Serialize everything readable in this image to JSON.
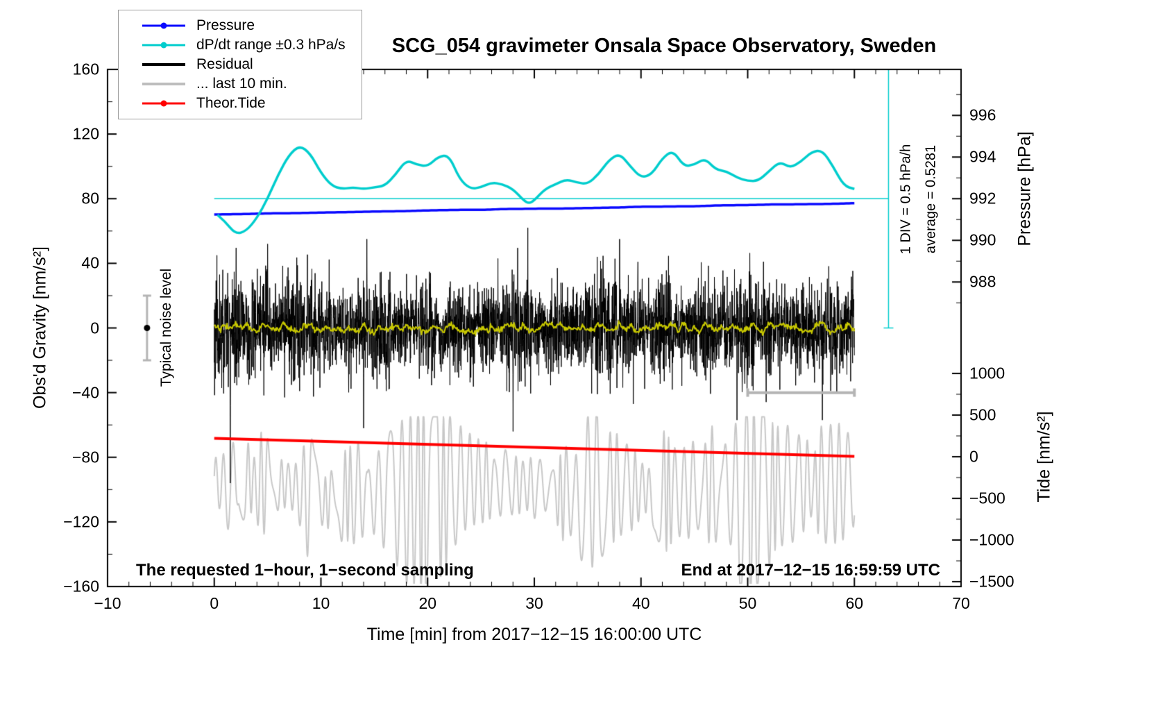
{
  "title": "SCG_054 gravimeter Onsala Space Observatory, Sweden",
  "legend": {
    "items": [
      {
        "label": "Pressure",
        "color": "#0a0aff",
        "marker": "line-dot",
        "line_width": 3
      },
      {
        "label": "dP/dt range ±0.3 hPa/s",
        "color": "#00cdcd",
        "marker": "line-dot",
        "line_width": 3
      },
      {
        "label": "Residual",
        "color": "#000000",
        "marker": "line",
        "line_width": 4
      },
      {
        "label": "... last 10 min.",
        "color": "#bdbdbd",
        "marker": "line",
        "line_width": 4
      },
      {
        "label": "Theor.Tide",
        "color": "#ff0000",
        "marker": "line-dot",
        "line_width": 3
      }
    ]
  },
  "axes": {
    "x": {
      "label": "Time [min] from 2017−12−15 16:00:00 UTC",
      "min": -10,
      "max": 70,
      "major_ticks": [
        -10,
        0,
        10,
        20,
        30,
        40,
        50,
        60,
        70
      ],
      "minor_step": 2
    },
    "gravity": {
      "label": "Obs'd Gravity [nm/s²]",
      "min": -160,
      "max": 160,
      "major_ticks": [
        -160,
        -120,
        -80,
        -40,
        0,
        40,
        80,
        120,
        160
      ],
      "minor_step": 20
    },
    "pressure": {
      "label": "Pressure [hPa]",
      "major_ticks": [
        988,
        990,
        992,
        994,
        996
      ],
      "minor_ticks": [
        987,
        989,
        991,
        993,
        995,
        997
      ]
    },
    "tide": {
      "label": "Tide [nm/s²]",
      "major_ticks": [
        -1500,
        -1000,
        -500,
        0,
        500,
        1000
      ],
      "minor_ticks": [
        -1250,
        -750,
        -250,
        250,
        750
      ]
    }
  },
  "annotations": {
    "noise_level_label": "Typical noise level",
    "div_label": "1 DIV = 0.5 hPa/h",
    "average_label": "average = 0.5281",
    "sampling_note": "The requested 1−hour, 1−second sampling",
    "end_note": "End at 2017−12−15 16:59:59 UTC"
  },
  "chart_data": {
    "type": "line",
    "title": "SCG_054 gravimeter Onsala Space Observatory, Sweden",
    "x_axis": {
      "label": "Time [min] from 2017−12−15 16:00:00 UTC",
      "range": [
        -10,
        70
      ],
      "units": "min"
    },
    "y_left": {
      "label": "Obs'd Gravity [nm/s²]",
      "range": [
        -160,
        160
      ]
    },
    "y_right_pressure": {
      "label": "Pressure [hPa]",
      "ticks": [
        988,
        990,
        992,
        994,
        996
      ],
      "hpa_at_gravity_80": 992
    },
    "y_right_tide": {
      "label": "Tide [nm/s²]",
      "ticks": [
        -1500,
        -1000,
        -500,
        0,
        500,
        1000
      ]
    },
    "series": [
      {
        "name": "Pressure",
        "axis": "pressure",
        "color": "#0a0aff",
        "type": "trend",
        "x": [
          0,
          60
        ],
        "y_hpa": [
          991.25,
          991.78
        ],
        "trend_hpa_per_h": 0.5281,
        "width": 3.5
      },
      {
        "name": "dP/dt range ±0.3 hPa/s",
        "axis": "gravity",
        "color": "#00cdcd",
        "type": "smooth",
        "width": 3.5,
        "points": [
          [
            0.3,
            70
          ],
          [
            1,
            66
          ],
          [
            2,
            58
          ],
          [
            3,
            60
          ],
          [
            4,
            68
          ],
          [
            5,
            80
          ],
          [
            6,
            95
          ],
          [
            7,
            107
          ],
          [
            8,
            113
          ],
          [
            9,
            108
          ],
          [
            10,
            96
          ],
          [
            11,
            88
          ],
          [
            12,
            86
          ],
          [
            13,
            87
          ],
          [
            14,
            86
          ],
          [
            15,
            87
          ],
          [
            16,
            88
          ],
          [
            17,
            95
          ],
          [
            18,
            104
          ],
          [
            19,
            101
          ],
          [
            20,
            100
          ],
          [
            21,
            106
          ],
          [
            22,
            107
          ],
          [
            23,
            92
          ],
          [
            24,
            86
          ],
          [
            25,
            87
          ],
          [
            26,
            90
          ],
          [
            27,
            89
          ],
          [
            28,
            86
          ],
          [
            29,
            79
          ],
          [
            29.5,
            77
          ],
          [
            30,
            79
          ],
          [
            31,
            86
          ],
          [
            32,
            89
          ],
          [
            33,
            92
          ],
          [
            34,
            90
          ],
          [
            35,
            89
          ],
          [
            36,
            95
          ],
          [
            37,
            104
          ],
          [
            38,
            108
          ],
          [
            39,
            100
          ],
          [
            40,
            93
          ],
          [
            41,
            95
          ],
          [
            42,
            105
          ],
          [
            43,
            110
          ],
          [
            44,
            100
          ],
          [
            45,
            101
          ],
          [
            46,
            105
          ],
          [
            47,
            98
          ],
          [
            48,
            97
          ],
          [
            49,
            93
          ],
          [
            50,
            91
          ],
          [
            51,
            91
          ],
          [
            52,
            97
          ],
          [
            53,
            103
          ],
          [
            54,
            99
          ],
          [
            55,
            103
          ],
          [
            56,
            109
          ],
          [
            57,
            110
          ],
          [
            58,
            100
          ],
          [
            59,
            88
          ],
          [
            60,
            86
          ]
        ]
      },
      {
        "name": "Residual",
        "axis": "gravity",
        "color": "#000000",
        "type": "noise",
        "width": 1,
        "n": 3600,
        "x": [
          0,
          60
        ],
        "mean": 0,
        "std_base": 11,
        "std_var": 8,
        "spike_prob": 0.004,
        "clip": [
          -80,
          62
        ],
        "deep_spikes": [
          [
            1.5,
            -96
          ],
          [
            5,
            52
          ],
          [
            14,
            -62
          ],
          [
            14.3,
            55
          ],
          [
            28,
            -64
          ],
          [
            38,
            55
          ],
          [
            49,
            -57
          ],
          [
            57,
            -57
          ]
        ],
        "seed": 11
      },
      {
        "name": "Residual filtered",
        "axis": "gravity",
        "color": "#c8c800",
        "type": "noise-smooth",
        "width": 2,
        "n": 900,
        "x": [
          0,
          60
        ],
        "mean": 0,
        "amplitude": 3,
        "jitter": 0.9,
        "seed": 41
      },
      {
        "name": "... last 10 min.",
        "axis": "gravity",
        "color": "#c8c8c8",
        "type": "oscillation",
        "width": 2,
        "n": 1800,
        "x": [
          0,
          60
        ],
        "baseline": -101,
        "amp_base": 13,
        "amp_var": 26,
        "period_min": 0.85,
        "bursts": [
          [
            20,
            48,
            6
          ],
          [
            50.5,
            30,
            8
          ],
          [
            36,
            18,
            3
          ]
        ],
        "clip": [
          -158,
          -55
        ],
        "seed": 31
      },
      {
        "name": "Theor.Tide",
        "axis": "tide",
        "color": "#ff0000",
        "type": "linear",
        "width": 4,
        "x": [
          0,
          60
        ],
        "y_tide": [
          220,
          5
        ]
      }
    ],
    "reference_lines": [
      {
        "name": "dpdt-average-line",
        "axis": "gravity",
        "y": 80,
        "x": [
          0,
          63.2
        ],
        "color": "#00cdcd",
        "width": 1.5
      }
    ],
    "markers": [
      {
        "name": "typical-noise-level-errorbar",
        "axis": "gravity",
        "x": -6.3,
        "y": 0,
        "error": 20,
        "dot_color": "#000000",
        "bar_color": "#b4b4b4"
      },
      {
        "name": "last-10-min-extent-bar",
        "axis": "gravity",
        "y": -40,
        "x": [
          50,
          60
        ],
        "color": "#b4b4b4"
      },
      {
        "name": "one-div-scale-bar",
        "axis": "gravity",
        "x": 63.2,
        "y_span": [
          0,
          160
        ],
        "color": "#00cdcd"
      }
    ]
  }
}
